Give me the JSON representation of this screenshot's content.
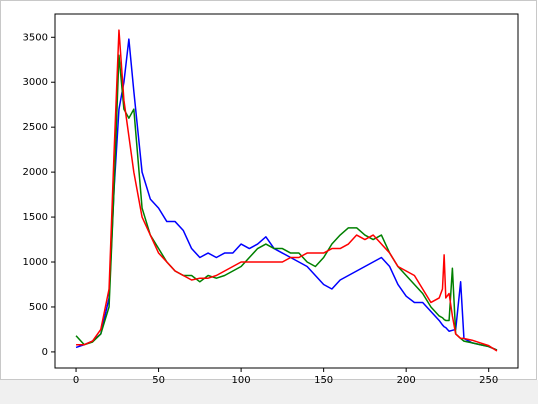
{
  "chart_data": {
    "type": "line",
    "x": [
      0,
      5,
      10,
      15,
      20,
      23,
      26,
      29,
      32,
      35,
      40,
      45,
      50,
      55,
      60,
      65,
      70,
      75,
      80,
      85,
      90,
      95,
      100,
      105,
      110,
      115,
      120,
      125,
      130,
      135,
      140,
      145,
      150,
      155,
      160,
      165,
      170,
      175,
      180,
      185,
      190,
      195,
      200,
      205,
      210,
      215,
      220,
      222,
      223,
      224,
      226,
      228,
      230,
      233,
      235,
      240,
      245,
      250,
      255
    ],
    "series": [
      {
        "name": "b",
        "color": "#0000ff",
        "values": [
          50,
          80,
          120,
          200,
          600,
          1800,
          2700,
          3000,
          3480,
          2900,
          2000,
          1700,
          1600,
          1450,
          1450,
          1350,
          1150,
          1050,
          1100,
          1050,
          1100,
          1100,
          1200,
          1150,
          1200,
          1280,
          1150,
          1100,
          1050,
          1000,
          950,
          850,
          750,
          700,
          800,
          850,
          900,
          950,
          1000,
          1050,
          950,
          750,
          620,
          550,
          550,
          450,
          350,
          300,
          280,
          270,
          230,
          240,
          250,
          780,
          150,
          100,
          80,
          60,
          20
        ]
      },
      {
        "name": "g",
        "color": "#008000",
        "values": [
          180,
          80,
          110,
          200,
          500,
          1800,
          3300,
          2700,
          2600,
          2700,
          1600,
          1300,
          1150,
          1000,
          900,
          850,
          850,
          780,
          850,
          820,
          850,
          900,
          950,
          1050,
          1150,
          1200,
          1150,
          1150,
          1100,
          1100,
          1000,
          950,
          1050,
          1200,
          1300,
          1380,
          1380,
          1300,
          1250,
          1300,
          1100,
          950,
          850,
          750,
          650,
          500,
          400,
          380,
          360,
          350,
          350,
          930,
          200,
          150,
          120,
          100,
          80,
          60,
          20
        ]
      },
      {
        "name": "r",
        "color": "#ff0000",
        "values": [
          80,
          80,
          120,
          250,
          700,
          2200,
          3580,
          2800,
          2400,
          2000,
          1500,
          1300,
          1100,
          1000,
          900,
          850,
          800,
          820,
          820,
          850,
          900,
          950,
          1000,
          1000,
          1000,
          1000,
          1000,
          1000,
          1050,
          1050,
          1100,
          1100,
          1100,
          1150,
          1150,
          1200,
          1300,
          1250,
          1300,
          1200,
          1100,
          950,
          900,
          850,
          700,
          550,
          600,
          700,
          1080,
          600,
          650,
          400,
          200,
          150,
          150,
          130,
          100,
          70,
          10
        ]
      }
    ],
    "xlim": [
      -12.75,
      267.75
    ],
    "xticks": [
      0,
      50,
      100,
      150,
      200,
      250
    ],
    "ylim": [
      -179,
      3759
    ],
    "yticks": [
      0,
      500,
      1000,
      1500,
      2000,
      2500,
      3000,
      3500
    ]
  }
}
